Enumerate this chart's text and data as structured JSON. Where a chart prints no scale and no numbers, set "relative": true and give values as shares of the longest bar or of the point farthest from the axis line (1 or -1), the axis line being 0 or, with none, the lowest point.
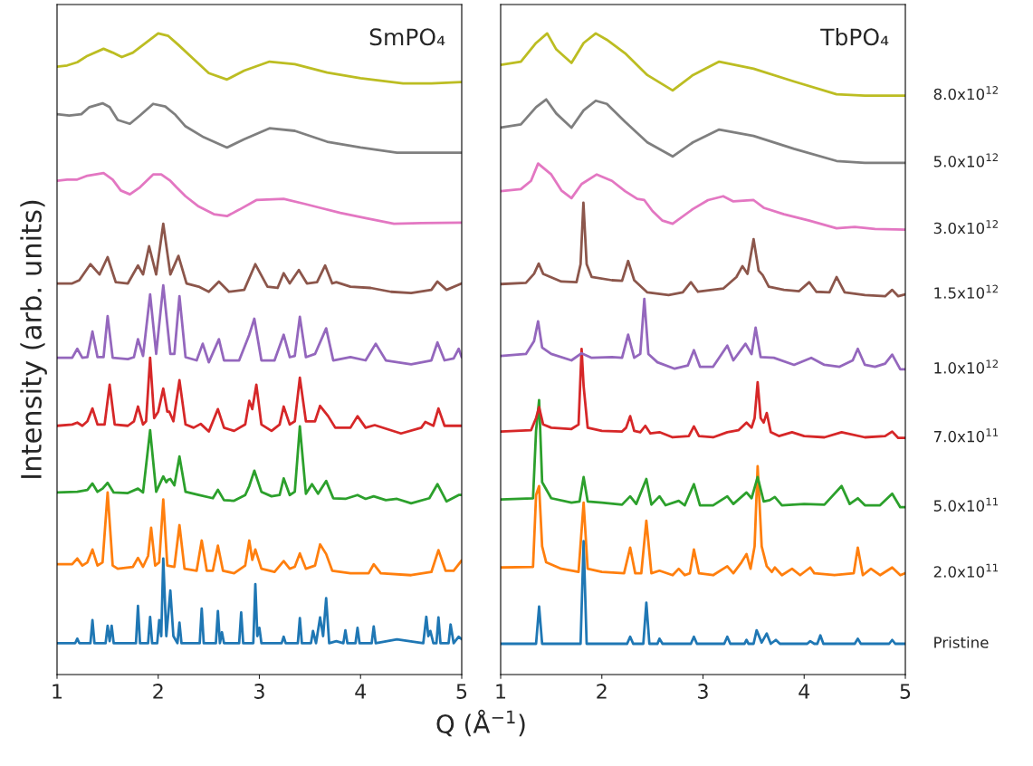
{
  "chart_data": [
    {
      "type": "line",
      "title": "SmPO₄",
      "xlabel": "Q (Å$^{−1}$)",
      "ylabel": "Intensity (arb. units)",
      "relative": true,
      "xlim": [
        1,
        5
      ],
      "xticks": [
        1,
        2,
        3,
        4,
        5
      ],
      "tick_labels": "x",
      "grid": false,
      "series": [
        {
          "color": "#1f77b4",
          "x": [
            1.0,
            1.18,
            1.2,
            1.22,
            1.33,
            1.35,
            1.37,
            1.48,
            1.5,
            1.52,
            1.54,
            1.56,
            1.78,
            1.8,
            1.82,
            1.9,
            1.92,
            1.94,
            1.99,
            2.01,
            2.03,
            2.05,
            2.08,
            2.12,
            2.15,
            2.19,
            2.21,
            2.23,
            2.41,
            2.43,
            2.45,
            2.57,
            2.59,
            2.61,
            2.63,
            2.65,
            2.8,
            2.82,
            2.84,
            2.94,
            2.96,
            2.98,
            3.0,
            3.02,
            3.22,
            3.24,
            3.26,
            3.38,
            3.4,
            3.42,
            3.51,
            3.53,
            3.56,
            3.6,
            3.63,
            3.66,
            3.69,
            3.76,
            3.83,
            3.85,
            3.87,
            3.95,
            3.97,
            3.99,
            4.11,
            4.13,
            4.15,
            4.36,
            4.62,
            4.65,
            4.67,
            4.69,
            4.72,
            4.75,
            4.77,
            4.79,
            4.87,
            4.89,
            4.92,
            4.97,
            5.0
          ],
          "values": [
            0.049,
            0.049,
            0.056,
            0.049,
            0.049,
            0.085,
            0.049,
            0.049,
            0.076,
            0.052,
            0.076,
            0.049,
            0.049,
            0.107,
            0.049,
            0.049,
            0.09,
            0.049,
            0.049,
            0.085,
            0.06,
            0.181,
            0.06,
            0.131,
            0.06,
            0.049,
            0.081,
            0.049,
            0.049,
            0.103,
            0.049,
            0.049,
            0.099,
            0.049,
            0.066,
            0.049,
            0.049,
            0.097,
            0.049,
            0.049,
            0.141,
            0.06,
            0.073,
            0.049,
            0.049,
            0.059,
            0.049,
            0.049,
            0.088,
            0.049,
            0.049,
            0.068,
            0.049,
            0.089,
            0.06,
            0.119,
            0.049,
            0.052,
            0.049,
            0.069,
            0.049,
            0.049,
            0.073,
            0.049,
            0.049,
            0.075,
            0.049,
            0.055,
            0.049,
            0.09,
            0.06,
            0.068,
            0.049,
            0.049,
            0.089,
            0.049,
            0.049,
            0.078,
            0.049,
            0.059,
            0.055
          ]
        },
        {
          "color": "#ff7f0e",
          "x": [
            1.0,
            1.15,
            1.2,
            1.25,
            1.3,
            1.35,
            1.4,
            1.45,
            1.5,
            1.55,
            1.6,
            1.75,
            1.8,
            1.85,
            1.9,
            1.93,
            1.97,
            2.01,
            2.05,
            2.09,
            2.16,
            2.21,
            2.26,
            2.38,
            2.43,
            2.48,
            2.54,
            2.59,
            2.64,
            2.75,
            2.86,
            2.9,
            2.93,
            2.96,
            3.02,
            3.15,
            3.24,
            3.3,
            3.35,
            3.4,
            3.46,
            3.55,
            3.6,
            3.66,
            3.72,
            3.9,
            4.08,
            4.13,
            4.2,
            4.5,
            4.7,
            4.77,
            4.84,
            4.92,
            5.0
          ],
          "values": [
            0.172,
            0.172,
            0.181,
            0.17,
            0.175,
            0.195,
            0.17,
            0.175,
            0.284,
            0.17,
            0.165,
            0.168,
            0.182,
            0.168,
            0.185,
            0.229,
            0.17,
            0.175,
            0.273,
            0.17,
            0.168,
            0.233,
            0.165,
            0.162,
            0.209,
            0.162,
            0.162,
            0.201,
            0.162,
            0.158,
            0.17,
            0.209,
            0.179,
            0.195,
            0.165,
            0.16,
            0.177,
            0.165,
            0.168,
            0.189,
            0.165,
            0.17,
            0.203,
            0.188,
            0.162,
            0.158,
            0.158,
            0.172,
            0.158,
            0.155,
            0.16,
            0.194,
            0.162,
            0.162,
            0.178
          ]
        },
        {
          "color": "#2ca02c",
          "x": [
            1.0,
            1.2,
            1.3,
            1.35,
            1.4,
            1.45,
            1.5,
            1.56,
            1.7,
            1.8,
            1.85,
            1.92,
            1.98,
            2.05,
            2.08,
            2.1,
            2.12,
            2.16,
            2.21,
            2.27,
            2.4,
            2.54,
            2.59,
            2.65,
            2.75,
            2.86,
            2.9,
            2.95,
            3.02,
            3.12,
            3.2,
            3.24,
            3.3,
            3.35,
            3.4,
            3.46,
            3.52,
            3.58,
            3.66,
            3.73,
            3.85,
            3.97,
            4.05,
            4.13,
            4.25,
            4.36,
            4.5,
            4.68,
            4.76,
            4.85,
            4.97,
            5.0
          ],
          "values": [
            0.284,
            0.285,
            0.288,
            0.298,
            0.285,
            0.29,
            0.299,
            0.284,
            0.283,
            0.29,
            0.284,
            0.381,
            0.285,
            0.309,
            0.3,
            0.304,
            0.305,
            0.295,
            0.34,
            0.285,
            0.28,
            0.275,
            0.288,
            0.272,
            0.271,
            0.28,
            0.294,
            0.318,
            0.285,
            0.278,
            0.28,
            0.306,
            0.28,
            0.285,
            0.387,
            0.282,
            0.297,
            0.282,
            0.302,
            0.275,
            0.274,
            0.28,
            0.274,
            0.278,
            0.272,
            0.274,
            0.267,
            0.275,
            0.297,
            0.27,
            0.28,
            0.28
          ]
        },
        {
          "color": "#d62728",
          "x": [
            1.0,
            1.15,
            1.2,
            1.25,
            1.3,
            1.35,
            1.4,
            1.47,
            1.52,
            1.57,
            1.7,
            1.76,
            1.8,
            1.85,
            1.88,
            1.92,
            1.96,
            2.0,
            2.05,
            2.09,
            2.11,
            2.15,
            2.21,
            2.27,
            2.35,
            2.42,
            2.5,
            2.59,
            2.65,
            2.75,
            2.86,
            2.9,
            2.93,
            2.97,
            3.02,
            3.12,
            3.2,
            3.24,
            3.3,
            3.35,
            3.4,
            3.46,
            3.55,
            3.6,
            3.68,
            3.75,
            3.9,
            3.97,
            4.05,
            4.14,
            4.4,
            4.6,
            4.64,
            4.72,
            4.77,
            4.83,
            5.0
          ],
          "values": [
            0.388,
            0.39,
            0.393,
            0.388,
            0.395,
            0.415,
            0.39,
            0.39,
            0.452,
            0.39,
            0.388,
            0.395,
            0.418,
            0.39,
            0.395,
            0.494,
            0.4,
            0.41,
            0.446,
            0.41,
            0.41,
            0.395,
            0.459,
            0.39,
            0.385,
            0.391,
            0.379,
            0.414,
            0.385,
            0.38,
            0.39,
            0.427,
            0.414,
            0.452,
            0.39,
            0.38,
            0.39,
            0.418,
            0.39,
            0.395,
            0.463,
            0.395,
            0.395,
            0.419,
            0.403,
            0.385,
            0.385,
            0.403,
            0.385,
            0.389,
            0.376,
            0.385,
            0.394,
            0.388,
            0.415,
            0.388,
            0.388
          ]
        },
        {
          "color": "#9467bd",
          "x": [
            1.0,
            1.15,
            1.2,
            1.25,
            1.3,
            1.35,
            1.4,
            1.46,
            1.5,
            1.55,
            1.7,
            1.76,
            1.8,
            1.85,
            1.92,
            1.98,
            2.05,
            2.12,
            2.16,
            2.21,
            2.27,
            2.38,
            2.44,
            2.5,
            2.6,
            2.65,
            2.8,
            2.9,
            2.95,
            3.02,
            3.15,
            3.24,
            3.3,
            3.35,
            3.4,
            3.46,
            3.55,
            3.66,
            3.73,
            3.9,
            4.05,
            4.15,
            4.25,
            4.5,
            4.7,
            4.76,
            4.83,
            4.92,
            4.97,
            5.0
          ],
          "values": [
            0.494,
            0.494,
            0.508,
            0.494,
            0.495,
            0.535,
            0.495,
            0.495,
            0.559,
            0.494,
            0.492,
            0.495,
            0.523,
            0.497,
            0.593,
            0.5,
            0.607,
            0.5,
            0.5,
            0.59,
            0.495,
            0.49,
            0.516,
            0.487,
            0.523,
            0.49,
            0.49,
            0.53,
            0.555,
            0.49,
            0.49,
            0.53,
            0.495,
            0.497,
            0.558,
            0.495,
            0.5,
            0.54,
            0.49,
            0.495,
            0.49,
            0.516,
            0.49,
            0.484,
            0.49,
            0.518,
            0.49,
            0.493,
            0.508,
            0.495
          ]
        },
        {
          "color": "#8c564b",
          "x": [
            1.0,
            1.15,
            1.22,
            1.33,
            1.42,
            1.5,
            1.58,
            1.7,
            1.8,
            1.85,
            1.91,
            1.98,
            2.05,
            2.12,
            2.2,
            2.28,
            2.4,
            2.5,
            2.6,
            2.7,
            2.85,
            2.96,
            3.08,
            3.18,
            3.24,
            3.3,
            3.39,
            3.47,
            3.57,
            3.65,
            3.72,
            3.76,
            3.9,
            4.1,
            4.3,
            4.5,
            4.7,
            4.76,
            4.85,
            5.0
          ],
          "values": [
            0.61,
            0.61,
            0.615,
            0.64,
            0.624,
            0.651,
            0.612,
            0.61,
            0.638,
            0.624,
            0.668,
            0.624,
            0.703,
            0.624,
            0.653,
            0.61,
            0.605,
            0.597,
            0.613,
            0.597,
            0.6,
            0.64,
            0.605,
            0.603,
            0.626,
            0.61,
            0.631,
            0.61,
            0.612,
            0.638,
            0.61,
            0.612,
            0.605,
            0.603,
            0.597,
            0.595,
            0.6,
            0.613,
            0.6,
            0.61
          ]
        },
        {
          "color": "#e377c2",
          "x": [
            1.0,
            1.1,
            1.2,
            1.3,
            1.46,
            1.55,
            1.63,
            1.72,
            1.82,
            1.95,
            2.03,
            2.12,
            2.18,
            2.27,
            2.4,
            2.55,
            2.68,
            2.8,
            2.97,
            3.24,
            3.45,
            3.6,
            3.8,
            4.05,
            4.33,
            4.6,
            5.0
          ],
          "values": [
            0.77,
            0.772,
            0.772,
            0.778,
            0.782,
            0.772,
            0.755,
            0.749,
            0.76,
            0.78,
            0.78,
            0.77,
            0.76,
            0.746,
            0.73,
            0.718,
            0.715,
            0.725,
            0.74,
            0.742,
            0.734,
            0.728,
            0.72,
            0.712,
            0.703,
            0.704,
            0.705
          ]
        },
        {
          "color": "#7f7f7f",
          "x": [
            1.0,
            1.12,
            1.24,
            1.32,
            1.45,
            1.52,
            1.6,
            1.72,
            1.82,
            1.95,
            2.07,
            2.17,
            2.27,
            2.45,
            2.68,
            2.85,
            3.1,
            3.35,
            3.67,
            4.0,
            4.36,
            4.7,
            5.0
          ],
          "values": [
            0.874,
            0.872,
            0.874,
            0.885,
            0.891,
            0.885,
            0.865,
            0.859,
            0.872,
            0.89,
            0.886,
            0.873,
            0.855,
            0.838,
            0.822,
            0.835,
            0.852,
            0.848,
            0.831,
            0.822,
            0.814,
            0.814,
            0.814
          ]
        },
        {
          "color": "#bcbd22",
          "x": [
            1.0,
            1.1,
            1.2,
            1.3,
            1.46,
            1.55,
            1.64,
            1.75,
            1.85,
            2.0,
            2.1,
            2.2,
            2.35,
            2.5,
            2.68,
            2.85,
            3.1,
            3.35,
            3.67,
            4.0,
            4.42,
            4.7,
            5.0
          ],
          "values": [
            0.948,
            0.95,
            0.955,
            0.965,
            0.976,
            0.97,
            0.963,
            0.97,
            0.982,
            1,
            0.996,
            0.982,
            0.96,
            0.938,
            0.928,
            0.942,
            0.956,
            0.952,
            0.939,
            0.93,
            0.922,
            0.922,
            0.924
          ]
        }
      ]
    },
    {
      "type": "line",
      "title": "TbPO₄",
      "relative": true,
      "xlim": [
        1,
        5
      ],
      "xticks": [
        1,
        2,
        3,
        4,
        5
      ],
      "tick_labels": "x",
      "grid": false,
      "series": [
        {
          "name": "Pristine",
          "color": "#1f77b4",
          "x": [
            1.0,
            1.35,
            1.38,
            1.41,
            1.79,
            1.82,
            1.85,
            2.25,
            2.28,
            2.31,
            2.41,
            2.44,
            2.47,
            2.55,
            2.57,
            2.6,
            2.88,
            2.91,
            2.94,
            3.21,
            3.24,
            3.27,
            3.41,
            3.43,
            3.45,
            3.5,
            3.53,
            3.58,
            3.63,
            3.67,
            3.72,
            3.76,
            4.03,
            4.06,
            4.1,
            4.13,
            4.16,
            4.19,
            4.5,
            4.53,
            4.56,
            4.84,
            4.87,
            4.9,
            5.0
          ],
          "values": [
            0.048,
            0.048,
            0.106,
            0.048,
            0.048,
            0.208,
            0.048,
            0.048,
            0.059,
            0.048,
            0.048,
            0.112,
            0.048,
            0.048,
            0.056,
            0.048,
            0.048,
            0.059,
            0.048,
            0.048,
            0.059,
            0.048,
            0.048,
            0.054,
            0.048,
            0.048,
            0.069,
            0.05,
            0.064,
            0.048,
            0.054,
            0.048,
            0.048,
            0.052,
            0.048,
            0.048,
            0.061,
            0.048,
            0.048,
            0.056,
            0.048,
            0.048,
            0.054,
            0.048,
            0.048
          ]
        },
        {
          "name": "2.0x10$^{11}$",
          "color": "#ff7f0e",
          "x": [
            1.0,
            1.32,
            1.35,
            1.38,
            1.41,
            1.45,
            1.6,
            1.77,
            1.82,
            1.86,
            2.0,
            2.22,
            2.28,
            2.33,
            2.39,
            2.44,
            2.49,
            2.57,
            2.7,
            2.76,
            2.82,
            2.87,
            2.91,
            2.96,
            3.1,
            3.24,
            3.3,
            3.38,
            3.43,
            3.47,
            3.51,
            3.54,
            3.58,
            3.63,
            3.68,
            3.71,
            3.78,
            3.88,
            3.96,
            4.06,
            4.1,
            4.3,
            4.49,
            4.53,
            4.58,
            4.66,
            4.75,
            4.87,
            4.95,
            5.0
          ],
          "values": [
            0.167,
            0.168,
            0.28,
            0.294,
            0.2,
            0.175,
            0.165,
            0.16,
            0.268,
            0.165,
            0.16,
            0.158,
            0.198,
            0.158,
            0.158,
            0.24,
            0.158,
            0.162,
            0.155,
            0.165,
            0.155,
            0.158,
            0.195,
            0.158,
            0.155,
            0.169,
            0.158,
            0.175,
            0.188,
            0.165,
            0.2,
            0.325,
            0.2,
            0.169,
            0.16,
            0.167,
            0.155,
            0.165,
            0.155,
            0.167,
            0.158,
            0.155,
            0.158,
            0.198,
            0.155,
            0.165,
            0.155,
            0.167,
            0.155,
            0.158
          ]
        },
        {
          "name": "5.0x10$^{11}$",
          "color": "#2ca02c",
          "x": [
            1.0,
            1.32,
            1.35,
            1.38,
            1.41,
            1.5,
            1.7,
            1.78,
            1.82,
            1.86,
            2.0,
            2.2,
            2.28,
            2.34,
            2.44,
            2.49,
            2.57,
            2.63,
            2.76,
            2.82,
            2.91,
            2.97,
            3.1,
            3.24,
            3.3,
            3.43,
            3.48,
            3.54,
            3.6,
            3.66,
            3.71,
            3.78,
            4.0,
            4.2,
            4.37,
            4.45,
            4.53,
            4.6,
            4.75,
            4.87,
            4.95,
            5.0
          ],
          "values": [
            0.273,
            0.275,
            0.38,
            0.428,
            0.3,
            0.275,
            0.268,
            0.27,
            0.308,
            0.27,
            0.268,
            0.265,
            0.278,
            0.266,
            0.305,
            0.265,
            0.278,
            0.264,
            0.271,
            0.264,
            0.297,
            0.264,
            0.264,
            0.278,
            0.266,
            0.284,
            0.275,
            0.308,
            0.27,
            0.272,
            0.277,
            0.264,
            0.266,
            0.265,
            0.294,
            0.266,
            0.275,
            0.264,
            0.264,
            0.282,
            0.261,
            0.261
          ]
        },
        {
          "name": "7.0x10$^{11}$",
          "color": "#d62728",
          "x": [
            1.0,
            1.3,
            1.35,
            1.38,
            1.42,
            1.5,
            1.7,
            1.77,
            1.8,
            1.82,
            1.86,
            2.0,
            2.2,
            2.24,
            2.28,
            2.32,
            2.38,
            2.43,
            2.48,
            2.57,
            2.7,
            2.86,
            2.91,
            2.96,
            3.1,
            3.24,
            3.35,
            3.43,
            3.48,
            3.51,
            3.54,
            3.57,
            3.6,
            3.63,
            3.67,
            3.75,
            3.88,
            4.0,
            4.2,
            4.37,
            4.6,
            4.8,
            4.87,
            4.93,
            5.0
          ],
          "values": [
            0.379,
            0.381,
            0.4,
            0.417,
            0.39,
            0.385,
            0.383,
            0.39,
            0.508,
            0.45,
            0.385,
            0.38,
            0.379,
            0.385,
            0.403,
            0.38,
            0.378,
            0.388,
            0.376,
            0.378,
            0.37,
            0.372,
            0.387,
            0.372,
            0.37,
            0.378,
            0.381,
            0.393,
            0.385,
            0.4,
            0.456,
            0.4,
            0.393,
            0.408,
            0.378,
            0.372,
            0.378,
            0.372,
            0.37,
            0.378,
            0.37,
            0.372,
            0.379,
            0.369,
            0.369
          ]
        },
        {
          "name": "1.0x10$^{12}$",
          "color": "#9467bd",
          "x": [
            1.0,
            1.25,
            1.33,
            1.37,
            1.41,
            1.5,
            1.7,
            1.8,
            1.9,
            2.1,
            2.2,
            2.26,
            2.32,
            2.38,
            2.42,
            2.46,
            2.55,
            2.72,
            2.85,
            2.91,
            2.97,
            3.1,
            3.24,
            3.3,
            3.42,
            3.48,
            3.52,
            3.57,
            3.7,
            3.9,
            4.07,
            4.2,
            4.35,
            4.48,
            4.53,
            4.6,
            4.7,
            4.8,
            4.87,
            4.95,
            5.0
          ],
          "values": [
            0.497,
            0.5,
            0.52,
            0.551,
            0.51,
            0.5,
            0.49,
            0.501,
            0.494,
            0.495,
            0.494,
            0.53,
            0.494,
            0.5,
            0.586,
            0.5,
            0.487,
            0.477,
            0.482,
            0.506,
            0.48,
            0.48,
            0.513,
            0.49,
            0.516,
            0.5,
            0.541,
            0.495,
            0.494,
            0.483,
            0.494,
            0.483,
            0.48,
            0.49,
            0.508,
            0.483,
            0.48,
            0.485,
            0.499,
            0.476,
            0.476
          ]
        },
        {
          "name": "1.5x10$^{12}$",
          "color": "#8c564b",
          "x": [
            1.0,
            1.25,
            1.33,
            1.376,
            1.42,
            1.6,
            1.75,
            1.79,
            1.818,
            1.85,
            1.9,
            2.1,
            2.2,
            2.26,
            2.32,
            2.45,
            2.66,
            2.8,
            2.88,
            2.95,
            3.2,
            3.33,
            3.39,
            3.44,
            3.5,
            3.55,
            3.59,
            3.65,
            3.8,
            3.95,
            4.05,
            4.12,
            4.25,
            4.32,
            4.4,
            4.6,
            4.8,
            4.87,
            4.93,
            5.0
          ],
          "values": [
            0.609,
            0.611,
            0.625,
            0.641,
            0.625,
            0.613,
            0.612,
            0.64,
            0.736,
            0.64,
            0.62,
            0.615,
            0.614,
            0.645,
            0.615,
            0.596,
            0.592,
            0.596,
            0.612,
            0.597,
            0.602,
            0.62,
            0.637,
            0.625,
            0.679,
            0.63,
            0.623,
            0.605,
            0.6,
            0.598,
            0.612,
            0.597,
            0.596,
            0.62,
            0.596,
            0.592,
            0.59,
            0.6,
            0.59,
            0.593
          ]
        },
        {
          "name": "3.0x10$^{12}$",
          "color": "#e377c2",
          "x": [
            1.0,
            1.2,
            1.3,
            1.37,
            1.5,
            1.6,
            1.7,
            1.8,
            1.95,
            2.1,
            2.23,
            2.35,
            2.42,
            2.5,
            2.6,
            2.7,
            2.9,
            3.05,
            3.2,
            3.3,
            3.5,
            3.6,
            3.8,
            4.05,
            4.32,
            4.5,
            4.7,
            5.0
          ],
          "values": [
            0.754,
            0.757,
            0.77,
            0.797,
            0.78,
            0.755,
            0.743,
            0.765,
            0.78,
            0.77,
            0.754,
            0.742,
            0.74,
            0.723,
            0.708,
            0.703,
            0.726,
            0.74,
            0.746,
            0.738,
            0.74,
            0.728,
            0.718,
            0.708,
            0.696,
            0.698,
            0.695,
            0.694
          ]
        },
        {
          "name": "5.0x10$^{12}$",
          "color": "#7f7f7f",
          "x": [
            1.0,
            1.2,
            1.35,
            1.45,
            1.55,
            1.7,
            1.82,
            1.94,
            2.05,
            2.23,
            2.45,
            2.7,
            2.9,
            3.16,
            3.5,
            3.9,
            4.32,
            4.6,
            5.0
          ],
          "values": [
            0.853,
            0.858,
            0.885,
            0.897,
            0.875,
            0.853,
            0.88,
            0.895,
            0.89,
            0.862,
            0.83,
            0.808,
            0.83,
            0.85,
            0.84,
            0.82,
            0.801,
            0.798,
            0.798
          ]
        },
        {
          "name": "8.0x10$^{12}$",
          "color": "#bcbd22",
          "x": [
            1.0,
            1.2,
            1.35,
            1.46,
            1.55,
            1.7,
            1.82,
            1.94,
            2.05,
            2.23,
            2.45,
            2.7,
            2.9,
            3.16,
            3.5,
            3.9,
            4.32,
            4.6,
            5.0
          ],
          "values": [
            0.951,
            0.956,
            0.985,
            1,
            0.975,
            0.954,
            0.985,
            1,
            0.99,
            0.969,
            0.935,
            0.911,
            0.935,
            0.956,
            0.945,
            0.925,
            0.905,
            0.903,
            0.903
          ]
        }
      ]
    }
  ]
}
